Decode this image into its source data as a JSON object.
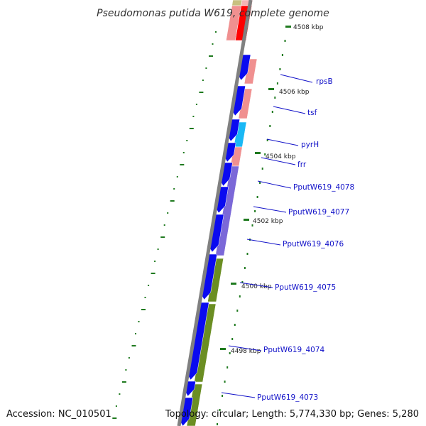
{
  "title": "Pseudomonas putida W619, complete genome",
  "footer": {
    "accession": "Accession: NC_010501",
    "summary": "Topology: circular; Length: 5,774,330 bp; Genes: 5,280"
  },
  "colors": {
    "background": "#ffffff",
    "backbone": "#808080",
    "forward_cds": "#0a0af0",
    "reverse_pink": "#f09090",
    "reverse_red": "#ff0000",
    "reverse_cyan": "#1ab8f5",
    "reverse_purple": "#7b68d8",
    "reverse_olive": "#6b8e23",
    "reverse_khaki": "#c8c080",
    "tick": "#1f7a1f",
    "label_text": "#1010c8",
    "label_line": "#1010c8"
  },
  "ticks": [
    {
      "label": "4508 kbp"
    },
    {
      "label": "4506 kbp"
    },
    {
      "label": "4504 kbp"
    },
    {
      "label": "4502 kbp"
    },
    {
      "label": "4500 kbp"
    },
    {
      "label": "4498 kbp"
    }
  ],
  "genes": [
    {
      "name": "rpsB"
    },
    {
      "name": "tsf"
    },
    {
      "name": "pyrH"
    },
    {
      "name": "frr"
    },
    {
      "name": "PputW619_4078"
    },
    {
      "name": "PputW619_4077"
    },
    {
      "name": "PputW619_4076"
    },
    {
      "name": "PputW619_4075"
    },
    {
      "name": "PputW619_4074"
    },
    {
      "name": "PputW619_4073"
    }
  ]
}
